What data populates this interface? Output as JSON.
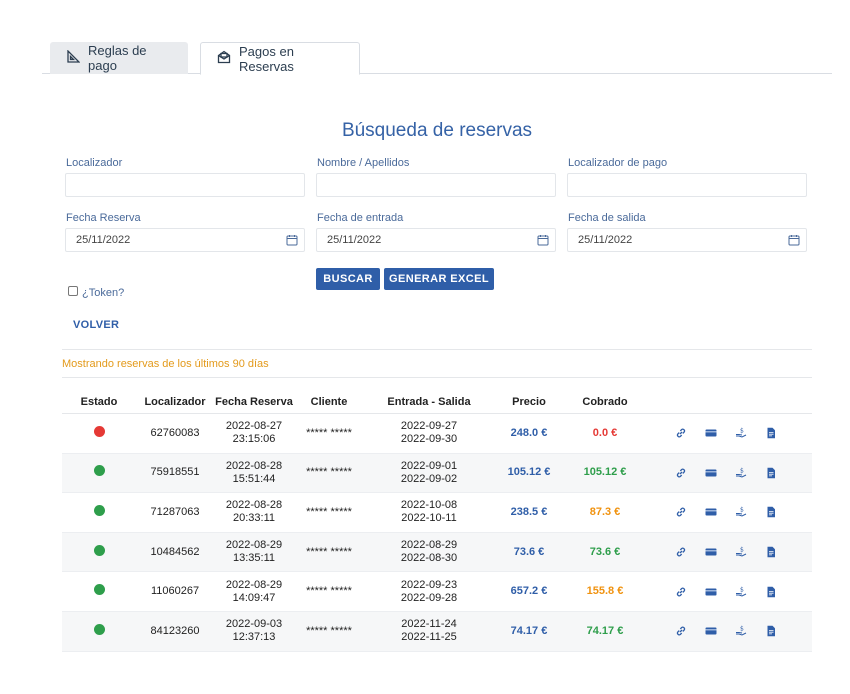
{
  "tabs": [
    {
      "label": "Reglas de pago",
      "icon": "ruler-triangle-icon"
    },
    {
      "label": "Pagos en Reservas",
      "icon": "mail-open-icon"
    }
  ],
  "title": "Búsqueda de reservas",
  "form": {
    "localizador_label": "Localizador",
    "localizador_value": "",
    "nombre_label": "Nombre / Apellidos",
    "nombre_value": "",
    "loc_pago_label": "Localizador de pago",
    "loc_pago_value": "",
    "fecha_reserva_label": "Fecha Reserva",
    "fecha_reserva_value": "25/11/2022",
    "fecha_entrada_label": "Fecha de entrada",
    "fecha_entrada_value": "25/11/2022",
    "fecha_salida_label": "Fecha de salida",
    "fecha_salida_value": "25/11/2022",
    "token_label": "¿Token?",
    "buscar_label": "BUSCAR",
    "excel_label": "GENERAR EXCEL",
    "volver_label": "VOLVER"
  },
  "notice": "Mostrando reservas de los últimos 90 días",
  "colors": {
    "accent": "#2f5ea8",
    "red": "#e53935",
    "green": "#2e9e4b",
    "orange": "#f0920f"
  },
  "table": {
    "headers": [
      "Estado",
      "Localizador",
      "Fecha Reserva",
      "Cliente",
      "Entrada - Salida",
      "Precio",
      "Cobrado"
    ],
    "rows": [
      {
        "estado": "red",
        "localizador": "62760083",
        "fecha": "2022-08-27",
        "hora": "23:15:06",
        "cliente": "***** *****",
        "entrada": "2022-09-27",
        "salida": "2022-09-30",
        "precio": "248.0 €",
        "cobrado": "0.0 €",
        "cobrado_status": "red"
      },
      {
        "estado": "green",
        "localizador": "75918551",
        "fecha": "2022-08-28",
        "hora": "15:51:44",
        "cliente": "***** *****",
        "entrada": "2022-09-01",
        "salida": "2022-09-02",
        "precio": "105.12 €",
        "cobrado": "105.12 €",
        "cobrado_status": "green"
      },
      {
        "estado": "green",
        "localizador": "71287063",
        "fecha": "2022-08-28",
        "hora": "20:33:11",
        "cliente": "***** *****",
        "entrada": "2022-10-08",
        "salida": "2022-10-11",
        "precio": "238.5 €",
        "cobrado": "87.3 €",
        "cobrado_status": "orange"
      },
      {
        "estado": "green",
        "localizador": "10484562",
        "fecha": "2022-08-29",
        "hora": "13:35:11",
        "cliente": "***** *****",
        "entrada": "2022-08-29",
        "salida": "2022-08-30",
        "precio": "73.6 €",
        "cobrado": "73.6 €",
        "cobrado_status": "green"
      },
      {
        "estado": "green",
        "localizador": "11060267",
        "fecha": "2022-08-29",
        "hora": "14:09:47",
        "cliente": "***** *****",
        "entrada": "2022-09-23",
        "salida": "2022-09-28",
        "precio": "657.2 €",
        "cobrado": "155.8 €",
        "cobrado_status": "orange"
      },
      {
        "estado": "green",
        "localizador": "84123260",
        "fecha": "2022-09-03",
        "hora": "12:37:13",
        "cliente": "***** *****",
        "entrada": "2022-11-24",
        "salida": "2022-11-25",
        "precio": "74.17 €",
        "cobrado": "74.17 €",
        "cobrado_status": "green"
      }
    ],
    "row_actions": [
      "link-icon",
      "credit-card-icon",
      "hand-money-icon",
      "document-icon"
    ]
  }
}
